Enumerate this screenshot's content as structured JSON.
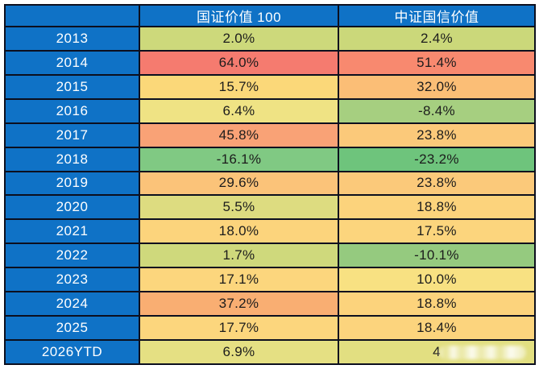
{
  "header": {
    "col_year": "",
    "col_series1": "国证价值 100",
    "col_series2": "中证国信价值"
  },
  "rows": [
    {
      "year": "2013",
      "v1": "2.0%",
      "v2": "2.4%",
      "c1": "#cdd97b",
      "c2": "#cbd87a",
      "obscured2": false
    },
    {
      "year": "2014",
      "v1": "64.0%",
      "v2": "51.4%",
      "c1": "#f57b6f",
      "c2": "#f8896f",
      "obscured2": false
    },
    {
      "year": "2015",
      "v1": "15.7%",
      "v2": "32.0%",
      "c1": "#fbd879",
      "c2": "#fbbe76",
      "obscured2": false
    },
    {
      "year": "2016",
      "v1": "6.4%",
      "v2": "-8.4%",
      "c1": "#efe384",
      "c2": "#a6cf80",
      "obscured2": false
    },
    {
      "year": "2017",
      "v1": "45.8%",
      "v2": "23.8%",
      "c1": "#f9a276",
      "c2": "#fbc97a",
      "obscured2": false
    },
    {
      "year": "2018",
      "v1": "-16.1%",
      "v2": "-23.2%",
      "c1": "#80c983",
      "c2": "#6ec47c",
      "obscured2": false
    },
    {
      "year": "2019",
      "v1": "29.6%",
      "v2": "23.8%",
      "c1": "#fbc379",
      "c2": "#fbc97a",
      "obscured2": false
    },
    {
      "year": "2020",
      "v1": "5.5%",
      "v2": "18.8%",
      "c1": "#dddc80",
      "c2": "#fcd37c",
      "obscured2": false
    },
    {
      "year": "2021",
      "v1": "18.0%",
      "v2": "17.5%",
      "c1": "#fcd47c",
      "c2": "#fcd57d",
      "obscured2": false
    },
    {
      "year": "2022",
      "v1": "1.7%",
      "v2": "-10.1%",
      "c1": "#cfd97c",
      "c2": "#95ca7f",
      "obscured2": false
    },
    {
      "year": "2023",
      "v1": "17.1%",
      "v2": "10.0%",
      "c1": "#fcd67d",
      "c2": "#f8e182",
      "obscured2": false
    },
    {
      "year": "2024",
      "v1": "37.2%",
      "v2": "18.8%",
      "c1": "#f9ae72",
      "c2": "#fcd37c",
      "obscured2": false
    },
    {
      "year": "2025",
      "v1": "17.7%",
      "v2": "18.4%",
      "c1": "#fcd67d",
      "c2": "#fcd47d",
      "obscured2": false
    },
    {
      "year": "2026YTD",
      "v1": "6.9%",
      "v2": "4",
      "c1": "#e5e083",
      "c2": "#e2df81",
      "obscured2": true
    }
  ],
  "colors": {
    "header_blue": "#0f72c6",
    "border": "#0c0f1e",
    "cell_text": "#1c1c1c",
    "header_text": "#ffffff"
  },
  "chart_data": {
    "type": "table",
    "title": "",
    "columns": [
      "",
      "国证价值 100",
      "中证国信价值"
    ],
    "categories": [
      "2013",
      "2014",
      "2015",
      "2016",
      "2017",
      "2018",
      "2019",
      "2020",
      "2021",
      "2022",
      "2023",
      "2024",
      "2025",
      "2026YTD"
    ],
    "series": [
      {
        "name": "国证价值 100",
        "values": [
          2.0,
          64.0,
          15.7,
          6.4,
          45.8,
          -16.1,
          29.6,
          5.5,
          18.0,
          1.7,
          17.1,
          37.2,
          17.7,
          6.9
        ]
      },
      {
        "name": "中证国信价值",
        "values": [
          2.4,
          51.4,
          32.0,
          -8.4,
          23.8,
          -23.2,
          23.8,
          18.8,
          17.5,
          -10.1,
          10.0,
          18.8,
          18.4,
          null
        ],
        "note": "2026YTD value partially obscured by blur; only leading digit 4 visible"
      }
    ],
    "layout_hints": {
      "style": "heatmap-table",
      "color_scale": "green (negative/low) to yellow to red (high)",
      "first_column": "year labels on blue background",
      "grid": true
    }
  }
}
